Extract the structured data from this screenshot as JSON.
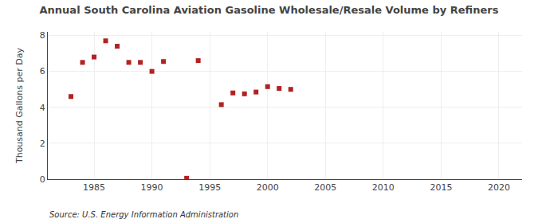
{
  "chart_data": {
    "type": "scatter",
    "title": "Annual South Carolina Aviation Gasoline Wholesale/Resale Volume by Refiners",
    "ylabel": "Thousand Gallons per Day",
    "source": "Source: U.S. Energy Information Administration",
    "x": [
      1983,
      1984,
      1985,
      1986,
      1987,
      1988,
      1989,
      1990,
      1991,
      1993,
      1994,
      1996,
      1997,
      1998,
      1999,
      2000,
      2001,
      2002
    ],
    "values": [
      4.6,
      6.5,
      6.8,
      7.7,
      7.4,
      6.5,
      6.5,
      6.0,
      6.55,
      0.05,
      6.6,
      4.15,
      4.8,
      4.75,
      4.85,
      5.15,
      5.05,
      5.0
    ],
    "color": "#b22222",
    "marker": "square",
    "xlim": [
      1981,
      2022
    ],
    "ylim": [
      0,
      8.2
    ],
    "xticks": [
      1985,
      1990,
      1995,
      2000,
      2005,
      2010,
      2015,
      2020
    ],
    "yticks": [
      0,
      2,
      4,
      6,
      8
    ],
    "grid": true
  }
}
